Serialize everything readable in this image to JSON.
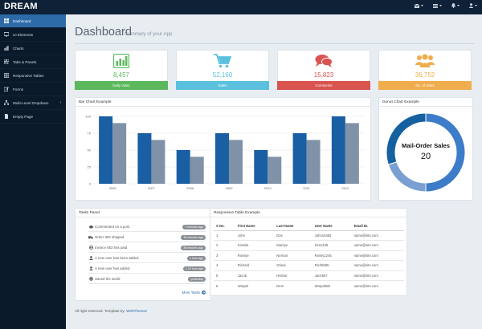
{
  "app": {
    "brand": "DREAM"
  },
  "colors": {
    "green": "#5cb85c",
    "blue": "#5bc0de",
    "red": "#d9534f",
    "orange": "#f0ad4e",
    "bar_dark": "#1a5ea3",
    "bar_light": "#8092a7"
  },
  "sidebar": {
    "items": [
      {
        "label": "Dashboard",
        "icon": "dashboard-icon",
        "active": true
      },
      {
        "label": "UI Elements",
        "icon": "desktop-icon"
      },
      {
        "label": "Charts",
        "icon": "bar-chart-icon"
      },
      {
        "label": "Tabs & Panels",
        "icon": "qrcode-icon"
      },
      {
        "label": "Responsive Tables",
        "icon": "table-icon"
      },
      {
        "label": "Forms",
        "icon": "edit-icon"
      },
      {
        "label": "Multi-Level Dropdown",
        "icon": "sitemap-icon",
        "caret": "›"
      },
      {
        "label": "Empty Page",
        "icon": "file-icon"
      }
    ]
  },
  "header": {
    "title": "Dashboard",
    "subtitle": "Summary of your App"
  },
  "stats": [
    {
      "value": "8,457",
      "label": "Daily Visits",
      "color": "#5cb85c",
      "icon": "bar-chart-icon"
    },
    {
      "value": "52,160",
      "label": "Sales",
      "color": "#5bc0de",
      "icon": "shopping-cart-icon"
    },
    {
      "value": "15,823",
      "label": "Comments",
      "color": "#d9534f",
      "icon": "comments-icon"
    },
    {
      "value": "36,752",
      "label": "No. of Visits",
      "color": "#f0ad4e",
      "icon": "users-icon"
    }
  ],
  "bar_panel": {
    "title": "Bar Chart Example"
  },
  "donut_panel": {
    "title": "Donut Chart Example",
    "label": "Mail-Order Sales",
    "value": "20"
  },
  "chart_data": [
    {
      "type": "bar",
      "categories": [
        "2006",
        "2007",
        "2008",
        "2009",
        "2010",
        "2011",
        "2012"
      ],
      "series": [
        {
          "values": [
            100,
            75,
            50,
            75,
            50,
            75,
            100
          ],
          "color": "#1a5ea3"
        },
        {
          "values": [
            90,
            65,
            40,
            65,
            40,
            65,
            90
          ],
          "color": "#8092a7"
        }
      ],
      "yticks": [
        "100",
        "75",
        "50",
        "25",
        "0"
      ],
      "ylim": [
        0,
        100
      ],
      "grid": true
    },
    {
      "type": "pie",
      "donut": true,
      "center_label": "Mail-Order Sales",
      "center_value": "20",
      "slices": [
        {
          "value": 20,
          "color": "#7a9fd2"
        },
        {
          "value": 30,
          "color": "#15609f"
        },
        {
          "value": 50,
          "color": "#3d7cc9"
        }
      ]
    }
  ],
  "tasks": {
    "title": "Tasks Panel",
    "items": [
      {
        "text": "Commented on a post",
        "time": "7 minutes ago",
        "icon": "comment-icon"
      },
      {
        "text": "Order 392 shipped",
        "time": "16 minutes ago",
        "icon": "truck-icon"
      },
      {
        "text": "Invoice 653 has paid",
        "time": "36 minutes ago",
        "icon": "globe-icon"
      },
      {
        "text": "A new user has been added",
        "time": "1 hour ago",
        "icon": "user-icon"
      },
      {
        "text": "A new user has added",
        "time": "1.23 hour ago",
        "icon": "user-icon"
      },
      {
        "text": "Saved the world",
        "time": "yesterday",
        "icon": "check-icon"
      }
    ],
    "more": "More Tasks"
  },
  "table": {
    "title": "Responsive Table Example",
    "headers": [
      "S No.",
      "First Name",
      "Last Name",
      "User Name",
      "Email ID."
    ],
    "rows": [
      [
        "1",
        "John",
        "Doe",
        "John15482",
        "name@site.com"
      ],
      [
        "2",
        "Kimsila",
        "Marriye",
        "Kim1425",
        "name@site.com"
      ],
      [
        "3",
        "Rossye",
        "Nermal",
        "Rossy1245",
        "name@site.com"
      ],
      [
        "4",
        "Richard",
        "Orieal",
        "Rich5685",
        "name@site.com"
      ],
      [
        "5",
        "Jacob",
        "Hielsar",
        "Jac4587",
        "name@site.com"
      ],
      [
        "6",
        "Wrapel",
        "Dere",
        "Wrap4585",
        "name@site.com"
      ]
    ]
  },
  "footer": {
    "text": "All right reserved. Template by:",
    "link": "WebThemez"
  }
}
